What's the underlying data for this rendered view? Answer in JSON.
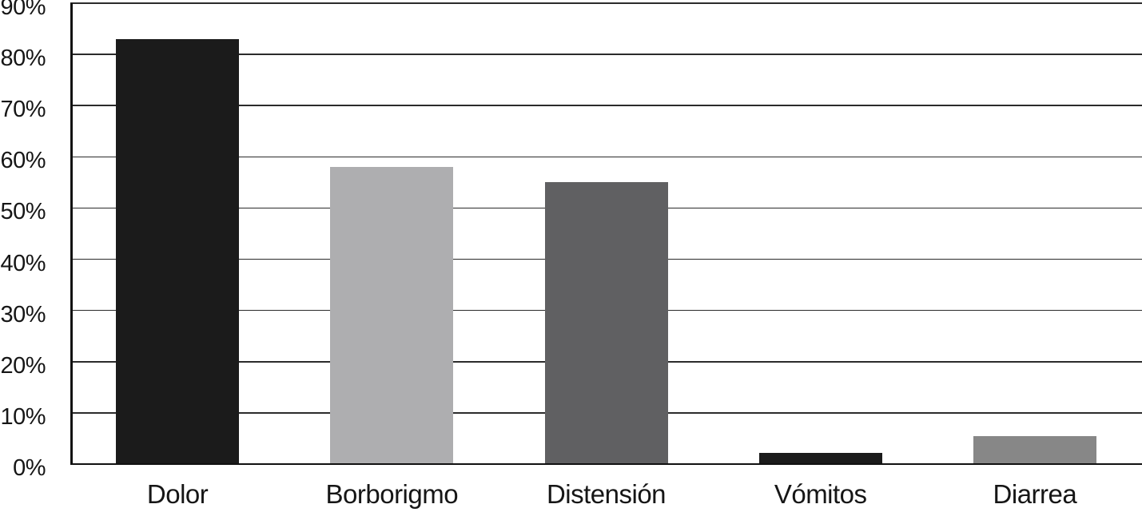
{
  "figure": {
    "background": "#ffffff",
    "axis_color": "#111111",
    "gridline_color": "#2b2b2b",
    "text_color": "#161616"
  },
  "chart_data": {
    "type": "bar",
    "title": "",
    "xlabel": "",
    "ylabel": "",
    "categories": [
      "Dolor",
      "Borborigmo",
      "Distensión",
      "Vómitos",
      "Diarrea"
    ],
    "values": [
      83,
      58,
      55,
      2.2,
      5.5
    ],
    "value_unit": "%",
    "bar_colors": [
      "#1b1b1b",
      "#aeaeb0",
      "#606062",
      "#1b1b1b",
      "#878787"
    ],
    "ylim": [
      0,
      90
    ],
    "ytick_step": 10,
    "ytick_labels": [
      "0%",
      "10%",
      "20%",
      "30%",
      "40%",
      "50%",
      "60%",
      "70%",
      "80%",
      "90%"
    ],
    "grid": "horizontal",
    "legend_position": "none"
  }
}
